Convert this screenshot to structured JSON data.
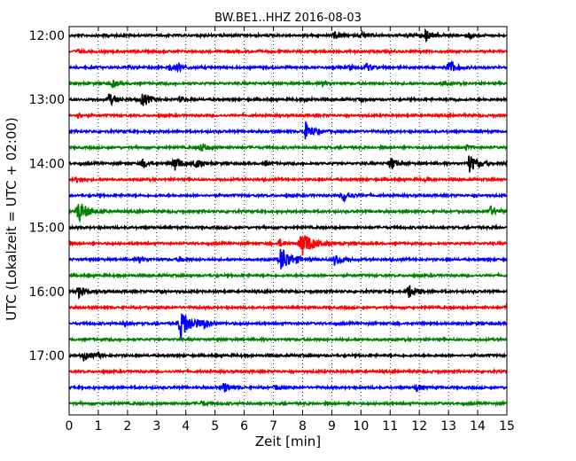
{
  "chart_data": {
    "type": "line",
    "title": "BW.BE1..HHZ 2016-08-03",
    "xlabel": "Zeit  [min]",
    "ylabel": "UTC (Lokalzeit = UTC + 02:00)",
    "xlim": [
      0,
      15
    ],
    "xticks": [
      0,
      1,
      2,
      3,
      4,
      5,
      6,
      7,
      8,
      9,
      10,
      11,
      12,
      13,
      14,
      15
    ],
    "yticks": [
      "12:00",
      "13:00",
      "14:00",
      "15:00",
      "16:00",
      "17:00"
    ],
    "row_interval_min": 15,
    "grid": true,
    "trace_colors": [
      "#000000",
      "#ff0000",
      "#0000ff",
      "#008000"
    ],
    "rows": [
      {
        "start": "12:00",
        "events": [
          {
            "t": 1.2,
            "a": 0.1
          },
          {
            "t": 9.1,
            "a": 0.3
          },
          {
            "t": 10.0,
            "a": 0.3
          },
          {
            "t": 11.6,
            "a": 0.15
          },
          {
            "t": 12.2,
            "a": 0.45
          },
          {
            "t": 13.7,
            "a": 0.25
          }
        ]
      },
      {
        "start": "12:15",
        "events": [
          {
            "t": 0.3,
            "a": 0.15
          }
        ]
      },
      {
        "start": "12:30",
        "events": [
          {
            "t": 2.0,
            "a": 0.1
          },
          {
            "t": 3.4,
            "a": 0.3
          },
          {
            "t": 3.75,
            "a": 0.35
          },
          {
            "t": 9.6,
            "a": 0.2
          },
          {
            "t": 10.2,
            "a": 0.3
          },
          {
            "t": 13.0,
            "a": 0.6
          }
        ]
      },
      {
        "start": "12:45",
        "events": [
          {
            "t": 1.5,
            "a": 0.3
          },
          {
            "t": 8.7,
            "a": 0.2
          },
          {
            "t": 12.8,
            "a": 0.15
          }
        ]
      },
      {
        "start": "13:00",
        "events": [
          {
            "t": 1.35,
            "a": 0.5
          },
          {
            "t": 2.5,
            "a": 0.6
          },
          {
            "t": 3.8,
            "a": 0.25
          },
          {
            "t": 8.1,
            "a": 0.2
          },
          {
            "t": 10.0,
            "a": 0.15
          },
          {
            "t": 13.2,
            "a": 0.15
          }
        ]
      },
      {
        "start": "13:15",
        "events": [
          {
            "t": 0.3,
            "a": 0.2
          }
        ]
      },
      {
        "start": "13:30",
        "events": [
          {
            "t": 8.1,
            "a": 0.7
          }
        ]
      },
      {
        "start": "13:45",
        "events": [
          {
            "t": 4.5,
            "a": 0.4
          },
          {
            "t": 13.6,
            "a": 0.2
          }
        ]
      },
      {
        "start": "14:00",
        "events": [
          {
            "t": 2.5,
            "a": 0.4
          },
          {
            "t": 3.6,
            "a": 0.6
          },
          {
            "t": 4.3,
            "a": 0.4
          },
          {
            "t": 6.7,
            "a": 0.2
          },
          {
            "t": 11.0,
            "a": 0.5
          },
          {
            "t": 13.7,
            "a": 0.75
          },
          {
            "t": 15.0,
            "a": 0.2
          }
        ]
      },
      {
        "start": "14:15",
        "events": [
          {
            "t": 0.25,
            "a": 0.3
          },
          {
            "t": 12.2,
            "a": 0.15
          }
        ]
      },
      {
        "start": "14:30",
        "events": [
          {
            "t": 9.4,
            "a": 0.5
          }
        ]
      },
      {
        "start": "14:45",
        "events": [
          {
            "t": 0.3,
            "a": 0.9
          },
          {
            "t": 14.4,
            "a": 0.45
          }
        ]
      },
      {
        "start": "15:00",
        "events": [
          {
            "t": 14.6,
            "a": 0.1
          }
        ]
      },
      {
        "start": "15:15",
        "events": [
          {
            "t": 7.2,
            "a": 0.3
          },
          {
            "t": 7.95,
            "a": 1.1
          }
        ]
      },
      {
        "start": "15:30",
        "events": [
          {
            "t": 2.4,
            "a": 0.25
          },
          {
            "t": 3.8,
            "a": 0.2
          },
          {
            "t": 7.25,
            "a": 1.05
          },
          {
            "t": 9.1,
            "a": 0.5
          }
        ]
      },
      {
        "start": "15:45",
        "events": []
      },
      {
        "start": "16:00",
        "events": [
          {
            "t": 0.3,
            "a": 0.5
          },
          {
            "t": 3.1,
            "a": 0.2
          },
          {
            "t": 11.6,
            "a": 0.6
          }
        ]
      },
      {
        "start": "16:15",
        "events": [
          {
            "t": 15.0,
            "a": 0.2
          }
        ]
      },
      {
        "start": "16:30",
        "events": [
          {
            "t": 1.9,
            "a": 0.2
          },
          {
            "t": 3.8,
            "a": 1.2
          },
          {
            "t": 4.6,
            "a": 0.35
          }
        ]
      },
      {
        "start": "16:45",
        "events": []
      },
      {
        "start": "17:00",
        "events": [
          {
            "t": 0.5,
            "a": 0.4
          },
          {
            "t": 1.0,
            "a": 0.2
          }
        ]
      },
      {
        "start": "17:15",
        "events": []
      },
      {
        "start": "17:30",
        "events": [
          {
            "t": 5.3,
            "a": 0.45
          },
          {
            "t": 7.1,
            "a": 0.2
          },
          {
            "t": 11.9,
            "a": 0.3
          }
        ]
      },
      {
        "start": "17:45",
        "events": [
          {
            "t": 4.55,
            "a": 0.2
          }
        ]
      }
    ]
  }
}
